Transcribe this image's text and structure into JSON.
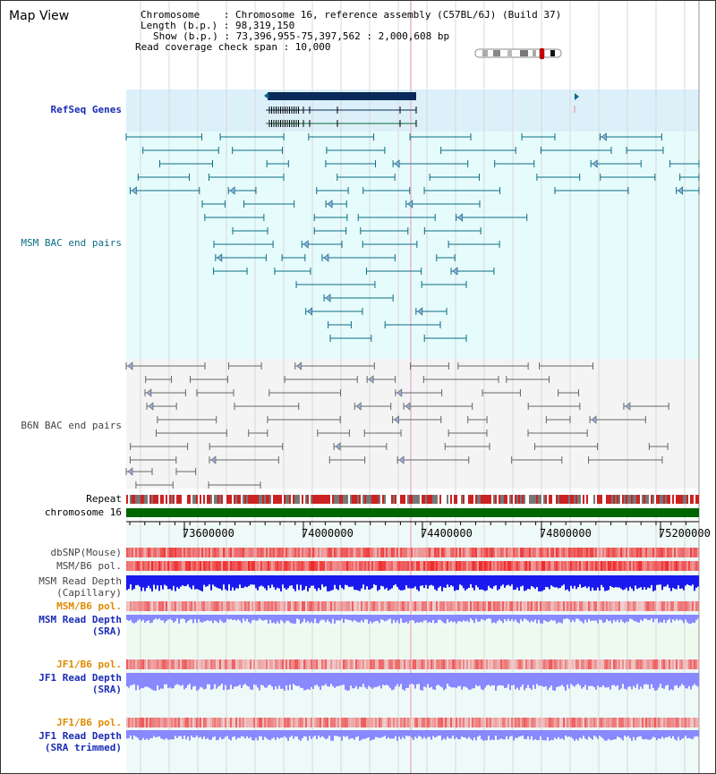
{
  "title": "Map View",
  "info": {
    "chromosome": "Chromosome    : Chromosome 16, reference assembly (C57BL/6J) (Build 37)",
    "length": "Length (b.p.) : 98,319,150",
    "show": "Show (b.p.) : 73,396,955-75,397,562 : 2,000,608 bp",
    "coverage_span": "Read coverage check span : 10,000"
  },
  "tracks": {
    "refseq": "RefSeq Genes",
    "msm_bac": "MSM BAC end pairs",
    "b6n_bac": "B6N BAC end pairs",
    "repeat": "Repeat",
    "chromosome": "chromosome 16",
    "dbsnp": "dbSNP(Mouse)",
    "msm_b6_pol_1": "MSM/B6 pol.",
    "msm_depth_cap_1": "MSM Read Depth",
    "msm_depth_cap_2": "(Capillary)",
    "msm_b6_pol_2": "MSM/B6 pol.",
    "msm_depth_sra_1": "MSM Read Depth",
    "msm_depth_sra_2": "(SRA)",
    "jf1_pol_1": "JF1/B6 pol.",
    "jf1_depth_sra_1": "JF1 Read Depth",
    "jf1_depth_sra_2": "(SRA)",
    "jf1_pol_2": "JF1/B6 pol.",
    "jf1_depth_trim_1": "JF1 Read Depth",
    "jf1_depth_trim_2": "(SRA trimmed)"
  },
  "axis": {
    "ticks": [
      "73600000",
      "74000000",
      "74400000",
      "74800000",
      "75200000"
    ]
  },
  "colors": {
    "refseq_bg": "#dcf0fa",
    "msm_bg": "#e6fbfb",
    "b6n_bg": "#f4f4f4",
    "msm_color": "#0b6e84",
    "b6n_color": "#666666",
    "chromosome_bar": "#006600",
    "depth_blue": "#1a1aee",
    "depth_light": "#8888ff",
    "pol_red": "#ee3333",
    "orange_label": "#e08a00",
    "label_blue": "#1a2cb5"
  }
}
